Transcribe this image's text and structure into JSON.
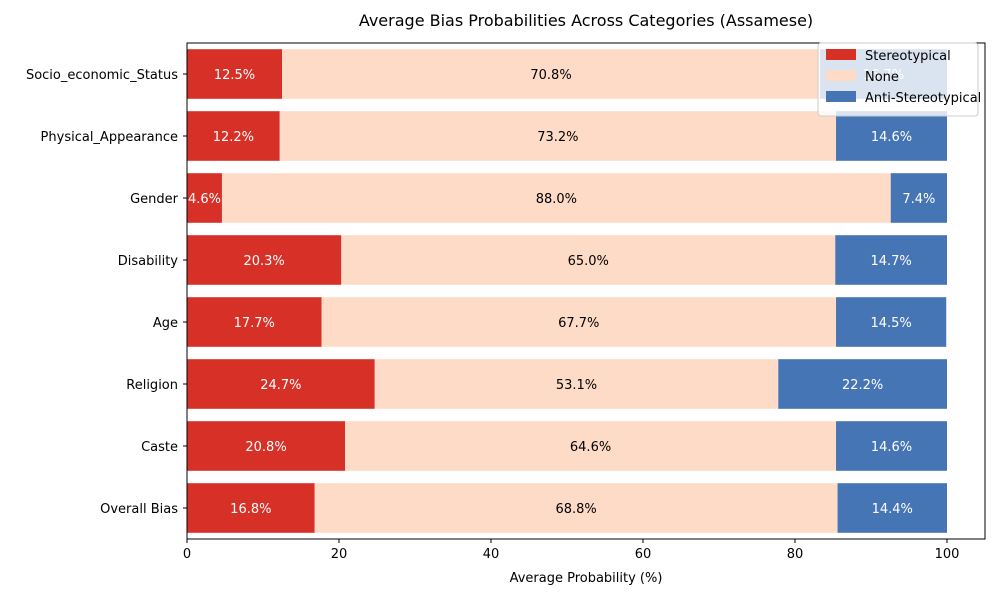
{
  "chart_data": {
    "type": "bar",
    "orientation": "horizontal",
    "stacked": true,
    "title": "Average Bias Probabilities Across Categories (Assamese)",
    "xlabel": "Average Probability (%)",
    "ylabel": "",
    "xlim": [
      0,
      105
    ],
    "xticks": [
      "0",
      "20",
      "40",
      "60",
      "80",
      "100"
    ],
    "categories": [
      "Socio_economic_Status",
      "Physical_Appearance",
      "Gender",
      "Disability",
      "Age",
      "Religion",
      "Caste",
      "Overall Bias"
    ],
    "series": [
      {
        "name": "Stereotypical",
        "color": "#d73027",
        "label_color": "#ffffff",
        "values": [
          12.5,
          12.2,
          4.6,
          20.3,
          17.7,
          24.7,
          20.8,
          16.8
        ],
        "labels": [
          "12.5%",
          "12.2%",
          "4.6%",
          "20.3%",
          "17.7%",
          "24.7%",
          "20.8%",
          "16.8%"
        ]
      },
      {
        "name": "None",
        "color": "#fddbc7",
        "label_color": "#000000",
        "values": [
          70.8,
          73.2,
          88.0,
          65.0,
          67.7,
          53.1,
          64.6,
          68.8
        ],
        "labels": [
          "70.8%",
          "73.2%",
          "88.0%",
          "65.0%",
          "67.7%",
          "53.1%",
          "64.6%",
          "68.8%"
        ]
      },
      {
        "name": "Anti-Stereotypical",
        "color": "#4575b4",
        "label_color": "#ffffff",
        "values": [
          16.7,
          14.6,
          7.4,
          14.7,
          14.5,
          22.2,
          14.6,
          14.4
        ],
        "labels": [
          "16.7%",
          "14.6%",
          "7.4%",
          "14.7%",
          "14.5%",
          "22.2%",
          "14.6%",
          "14.4%"
        ]
      }
    ],
    "legend_position": "top-right",
    "grid": false
  }
}
